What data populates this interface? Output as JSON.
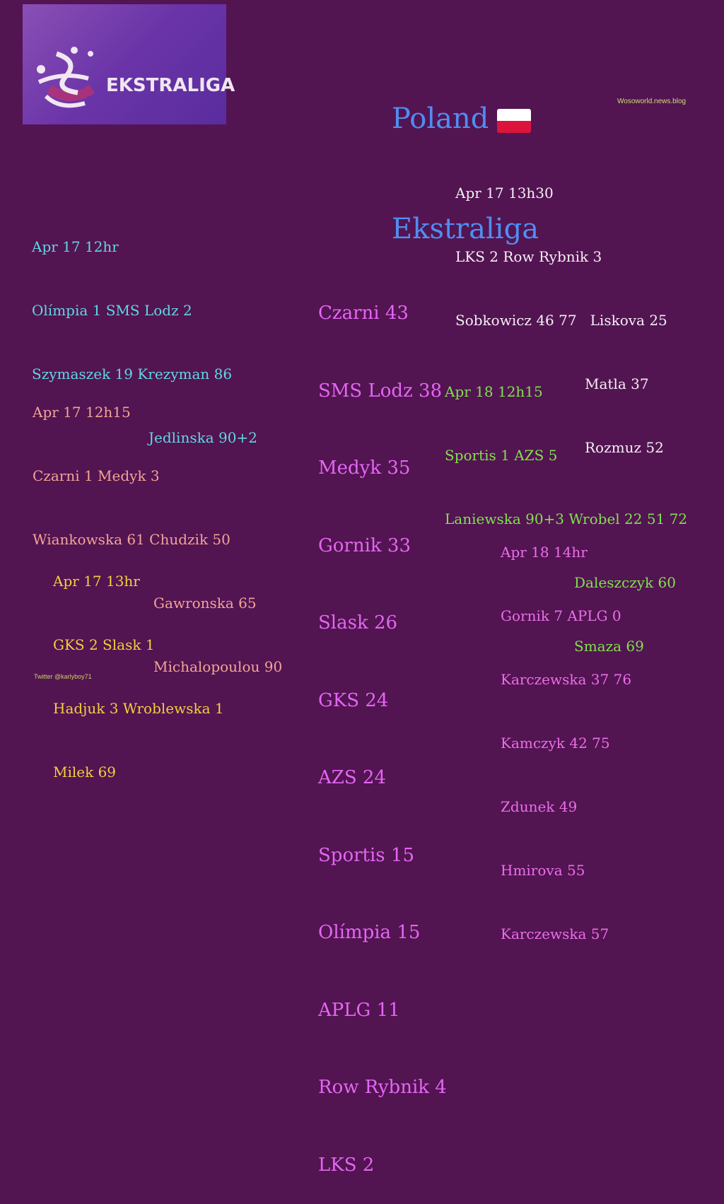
{
  "logo": {
    "text": "EKSTRALIGA"
  },
  "title": {
    "line1": "Poland",
    "line2": "Ekstraliga",
    "flag": "poland-flag",
    "flag_colors": [
      "#ffffff",
      "#dc143c"
    ]
  },
  "credit": "Wosoworld.news.blog",
  "twitter": "Twitter @karlyboy71",
  "colors": {
    "background": "#531452",
    "title": "#4f8ef2",
    "standings": "#e466f2"
  },
  "matches": [
    {
      "color": "#5fd8e2",
      "lines": [
        "Apr 17 12hr",
        "Olímpia 1 SMS Lodz 2",
        "Szymaszek 19 Krezyman 86",
        "Jedlinska 90+2"
      ]
    },
    {
      "color": "#f0a694",
      "lines": [
        "Apr 17 12h15",
        "Czarni 1 Medyk 3",
        "Wiankowska 61 Chudzik 50",
        "Gawronska 65",
        "Michalopoulou 90"
      ]
    },
    {
      "color": "#f3cf3e",
      "lines": [
        "Apr 17 13hr",
        "GKS 2 Slask 1",
        "Hadjuk 3 Wroblewska 1",
        "Milek 69"
      ]
    },
    {
      "color": "#f4f0f4",
      "lines": [
        "Apr 17 13h30",
        "LKS 2 Row Rybnik 3",
        "Sobkowicz 46 77   Liskova 25",
        "Matla 37",
        "Rozmuz 52"
      ]
    },
    {
      "color": "#7fe24c",
      "lines": [
        "Apr 18 12h15",
        "Sportis 1 AZS 5",
        "Laniewska 90+3 Wrobel 22 51 72",
        "Daleszczyk 60",
        "Smaza 69"
      ]
    },
    {
      "color": "#ea6fe6",
      "lines": [
        "Apr 18 14hr",
        "Gornik 7 APLG 0",
        "Karczewska 37 76",
        "Kamczyk 42 75",
        "Zdunek 49",
        "Hmirova 55",
        "Karczewska 57"
      ]
    }
  ],
  "standings": [
    "Czarni 43",
    "SMS Lodz 38",
    "Medyk 35",
    "Gornik 33",
    "Slask 26",
    "GKS 24",
    "AZS 24",
    "Sportis 15",
    "Olímpia 15",
    "APLG 11",
    "Row Rybnik 4",
    "LKS 2"
  ]
}
